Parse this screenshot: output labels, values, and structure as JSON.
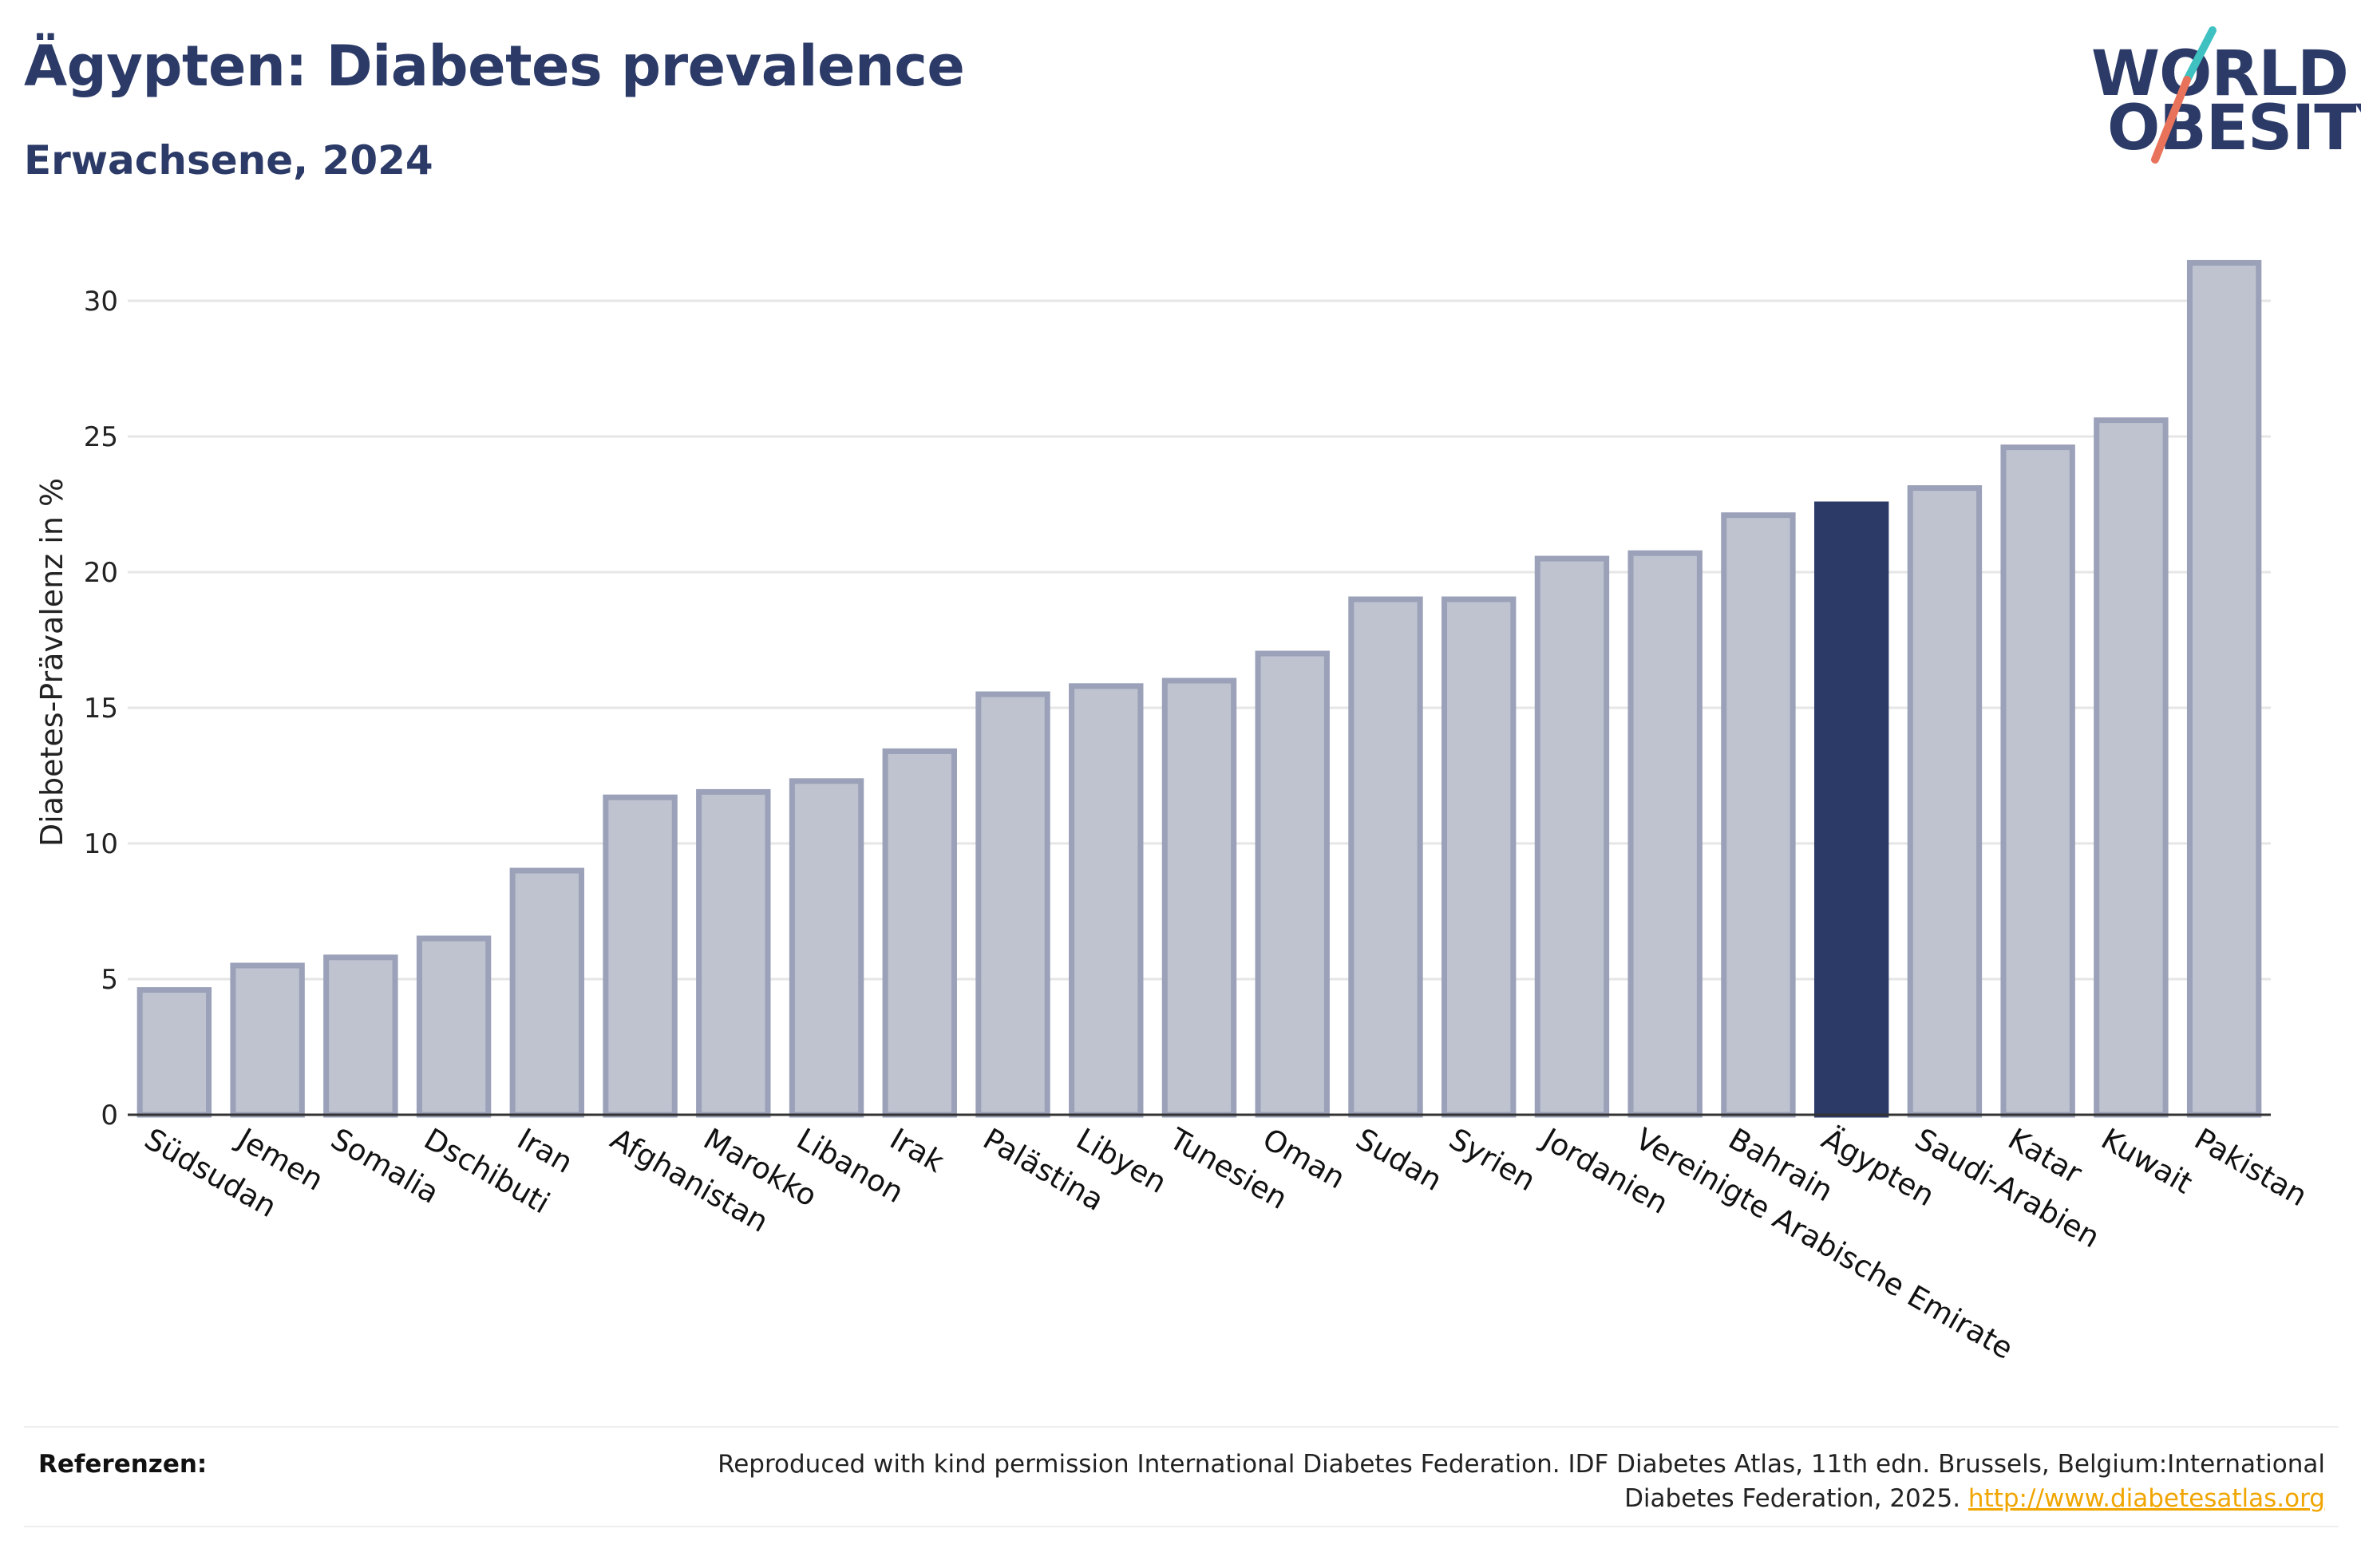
{
  "header": {
    "title": "Ägypten: Diabetes prevalence",
    "subtitle": "Erwachsene, 2024"
  },
  "logo": {
    "line1": "WORLD",
    "line2": "OBESITY",
    "colors": {
      "text": "#2b3a67",
      "slash_top": "#3ec1c0",
      "slash_bottom": "#e8735a"
    }
  },
  "colors": {
    "bar": "#bfc3d0",
    "bar_stroke": "#9aa1b8",
    "highlight": "#2b3a67",
    "grid": "#e6e6e6",
    "axis": "#333333"
  },
  "chart_data": {
    "type": "bar",
    "title": "Ägypten: Diabetes prevalence",
    "subtitle": "Erwachsene, 2024",
    "xlabel": "",
    "ylabel": "Diabetes-Prävalenz in %",
    "ylim": [
      0,
      33
    ],
    "yticks": [
      0,
      5,
      10,
      15,
      20,
      25,
      30
    ],
    "grid": true,
    "highlight": "Ägypten",
    "categories": [
      "Südsudan",
      "Jemen",
      "Somalia",
      "Dschibuti",
      "Iran",
      "Afghanistan",
      "Marokko",
      "Libanon",
      "Irak",
      "Palästina",
      "Libyen",
      "Tunesien",
      "Oman",
      "Sudan",
      "Syrien",
      "Jordanien",
      "Vereinigte Arabische Emirate",
      "Bahrain",
      "Ägypten",
      "Saudi-Arabien",
      "Katar",
      "Kuwait",
      "Pakistan"
    ],
    "values": [
      4.6,
      5.5,
      5.8,
      6.5,
      9.0,
      11.7,
      11.9,
      12.3,
      13.4,
      15.5,
      15.8,
      16.0,
      17.0,
      19.0,
      19.0,
      20.5,
      20.7,
      22.1,
      22.5,
      23.1,
      24.6,
      25.6,
      31.4
    ]
  },
  "references": {
    "label": "Referenzen:",
    "text": "Reproduced with kind permission International Diabetes Federation. IDF Diabetes Atlas, 11th edn. Brussels, Belgium:International Diabetes Federation, 2025.",
    "link": "http://www.diabetesatlas.org"
  }
}
